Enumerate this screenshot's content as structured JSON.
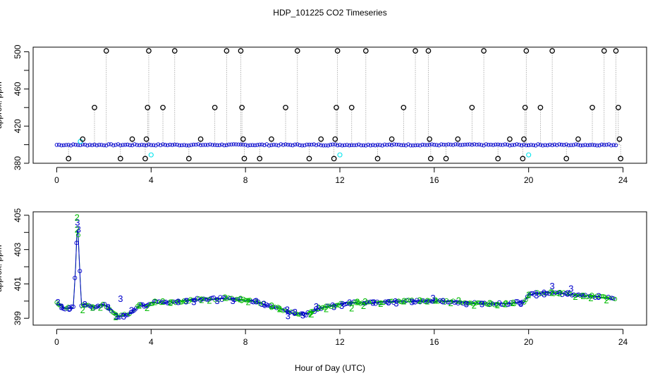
{
  "title": "HDP_101225  CO2 Timeseries",
  "xlabel": "Hour of Day (UTC)",
  "colors": {
    "axis": "#000000",
    "primary": "#0000cc",
    "secondary": "#00bb00",
    "highlight": "#00e5ee",
    "dropline": "#a0a0a0"
  },
  "chart_data": [
    {
      "type": "scatter",
      "ylabel": "approx. ppm",
      "xlim": [
        -1,
        25
      ],
      "ylim": [
        380,
        505
      ],
      "xticks": [
        0,
        4,
        8,
        12,
        16,
        20,
        24
      ],
      "yticks": [
        380,
        420,
        460,
        500
      ],
      "yticks_minor": [
        400,
        440,
        480
      ],
      "baseline": 399.8,
      "outliers": [
        {
          "x": 0.5,
          "y": 385
        },
        {
          "x": 1.1,
          "y": 406
        },
        {
          "x": 1.6,
          "y": 440
        },
        {
          "x": 2.1,
          "y": 501
        },
        {
          "x": 2.7,
          "y": 385
        },
        {
          "x": 3.2,
          "y": 406
        },
        {
          "x": 3.75,
          "y": 385
        },
        {
          "x": 3.8,
          "y": 406
        },
        {
          "x": 3.85,
          "y": 440
        },
        {
          "x": 3.9,
          "y": 501
        },
        {
          "x": 4.5,
          "y": 440
        },
        {
          "x": 5.0,
          "y": 501
        },
        {
          "x": 5.6,
          "y": 385
        },
        {
          "x": 6.1,
          "y": 406
        },
        {
          "x": 6.7,
          "y": 440
        },
        {
          "x": 7.2,
          "y": 501
        },
        {
          "x": 7.8,
          "y": 501
        },
        {
          "x": 7.85,
          "y": 440
        },
        {
          "x": 7.9,
          "y": 406
        },
        {
          "x": 7.95,
          "y": 385
        },
        {
          "x": 8.6,
          "y": 385
        },
        {
          "x": 9.1,
          "y": 406
        },
        {
          "x": 9.7,
          "y": 440
        },
        {
          "x": 10.2,
          "y": 501
        },
        {
          "x": 10.7,
          "y": 385
        },
        {
          "x": 11.2,
          "y": 406
        },
        {
          "x": 11.75,
          "y": 385
        },
        {
          "x": 11.8,
          "y": 406
        },
        {
          "x": 11.85,
          "y": 440
        },
        {
          "x": 11.9,
          "y": 501
        },
        {
          "x": 12.5,
          "y": 440
        },
        {
          "x": 13.1,
          "y": 501
        },
        {
          "x": 13.6,
          "y": 385
        },
        {
          "x": 14.2,
          "y": 406
        },
        {
          "x": 14.7,
          "y": 440
        },
        {
          "x": 15.2,
          "y": 501
        },
        {
          "x": 15.75,
          "y": 501
        },
        {
          "x": 15.8,
          "y": 406
        },
        {
          "x": 15.85,
          "y": 385
        },
        {
          "x": 16.5,
          "y": 385
        },
        {
          "x": 17.0,
          "y": 406
        },
        {
          "x": 17.6,
          "y": 440
        },
        {
          "x": 18.1,
          "y": 501
        },
        {
          "x": 18.7,
          "y": 385
        },
        {
          "x": 19.2,
          "y": 406
        },
        {
          "x": 19.75,
          "y": 385
        },
        {
          "x": 19.8,
          "y": 406
        },
        {
          "x": 19.85,
          "y": 440
        },
        {
          "x": 19.9,
          "y": 501
        },
        {
          "x": 20.5,
          "y": 440
        },
        {
          "x": 21.0,
          "y": 501
        },
        {
          "x": 21.6,
          "y": 385
        },
        {
          "x": 22.1,
          "y": 406
        },
        {
          "x": 22.7,
          "y": 440
        },
        {
          "x": 23.2,
          "y": 501
        },
        {
          "x": 23.7,
          "y": 501
        },
        {
          "x": 23.8,
          "y": 440
        },
        {
          "x": 23.85,
          "y": 406
        },
        {
          "x": 23.9,
          "y": 385
        }
      ],
      "highlights": [
        {
          "x": 1.0,
          "y": 403.5
        },
        {
          "x": 4.0,
          "y": 389
        },
        {
          "x": 12.0,
          "y": 389
        },
        {
          "x": 20.0,
          "y": 389
        }
      ]
    },
    {
      "type": "scatter",
      "ylabel": "approx. ppm",
      "xlim": [
        -1,
        25
      ],
      "ylim": [
        398.6,
        405.2
      ],
      "xticks": [
        0,
        4,
        8,
        12,
        16,
        20,
        24
      ],
      "yticks": [
        399,
        401,
        403,
        405
      ],
      "yticks_minor": [
        400,
        402,
        404
      ],
      "series_labels": [
        "3",
        "2"
      ],
      "profile": [
        {
          "x": 0.0,
          "y": 399.9
        },
        {
          "x": 0.3,
          "y": 399.6
        },
        {
          "x": 0.7,
          "y": 399.6
        },
        {
          "x": 0.8,
          "y": 402.0
        },
        {
          "x": 0.88,
          "y": 404.8
        },
        {
          "x": 0.95,
          "y": 402.5
        },
        {
          "x": 1.05,
          "y": 399.8
        },
        {
          "x": 1.3,
          "y": 399.8
        },
        {
          "x": 1.6,
          "y": 399.6
        },
        {
          "x": 2.0,
          "y": 399.8
        },
        {
          "x": 2.3,
          "y": 399.5
        },
        {
          "x": 2.6,
          "y": 399.1
        },
        {
          "x": 3.0,
          "y": 399.2
        },
        {
          "x": 3.3,
          "y": 399.5
        },
        {
          "x": 3.6,
          "y": 399.8
        },
        {
          "x": 3.8,
          "y": 399.7
        },
        {
          "x": 4.0,
          "y": 399.9
        },
        {
          "x": 5.0,
          "y": 399.95
        },
        {
          "x": 6.0,
          "y": 400.1
        },
        {
          "x": 7.0,
          "y": 400.15
        },
        {
          "x": 8.0,
          "y": 400.05
        },
        {
          "x": 8.3,
          "y": 400.0
        },
        {
          "x": 8.6,
          "y": 399.9
        },
        {
          "x": 9.0,
          "y": 399.7
        },
        {
          "x": 9.5,
          "y": 399.55
        },
        {
          "x": 10.0,
          "y": 399.3
        },
        {
          "x": 10.5,
          "y": 399.2
        },
        {
          "x": 11.0,
          "y": 399.5
        },
        {
          "x": 11.5,
          "y": 399.7
        },
        {
          "x": 12.0,
          "y": 399.8
        },
        {
          "x": 12.3,
          "y": 399.9
        },
        {
          "x": 13.0,
          "y": 399.9
        },
        {
          "x": 14.0,
          "y": 399.95
        },
        {
          "x": 15.0,
          "y": 400.0
        },
        {
          "x": 15.8,
          "y": 400.0
        },
        {
          "x": 16.2,
          "y": 400.0
        },
        {
          "x": 17.0,
          "y": 399.95
        },
        {
          "x": 18.0,
          "y": 399.85
        },
        {
          "x": 19.0,
          "y": 399.85
        },
        {
          "x": 19.8,
          "y": 399.95
        },
        {
          "x": 20.0,
          "y": 400.4
        },
        {
          "x": 21.0,
          "y": 400.5
        },
        {
          "x": 22.0,
          "y": 400.35
        },
        {
          "x": 23.0,
          "y": 400.25
        },
        {
          "x": 23.7,
          "y": 400.1
        }
      ],
      "extra_labels": [
        {
          "text": "3",
          "x": 0.05,
          "y": 399.95
        },
        {
          "text": "3",
          "x": 2.7,
          "y": 400.15
        },
        {
          "text": "2",
          "x": 2.5,
          "y": 399.1
        },
        {
          "text": "3",
          "x": 9.8,
          "y": 399.15
        },
        {
          "text": "2",
          "x": 10.8,
          "y": 399.25
        },
        {
          "text": "3",
          "x": 21.0,
          "y": 400.9
        },
        {
          "text": "3",
          "x": 21.8,
          "y": 400.75
        },
        {
          "text": "3",
          "x": 15.95,
          "y": 400.2
        },
        {
          "text": "2",
          "x": 12.5,
          "y": 399.6
        },
        {
          "text": "3",
          "x": 11.0,
          "y": 399.7
        },
        {
          "text": "2",
          "x": 13.0,
          "y": 399.75
        },
        {
          "text": "3",
          "x": 0.88,
          "y": 404.6
        },
        {
          "text": "2",
          "x": 0.86,
          "y": 404.9
        },
        {
          "text": "3",
          "x": 0.92,
          "y": 404.2
        },
        {
          "text": "2",
          "x": 1.1,
          "y": 399.5
        }
      ]
    }
  ]
}
